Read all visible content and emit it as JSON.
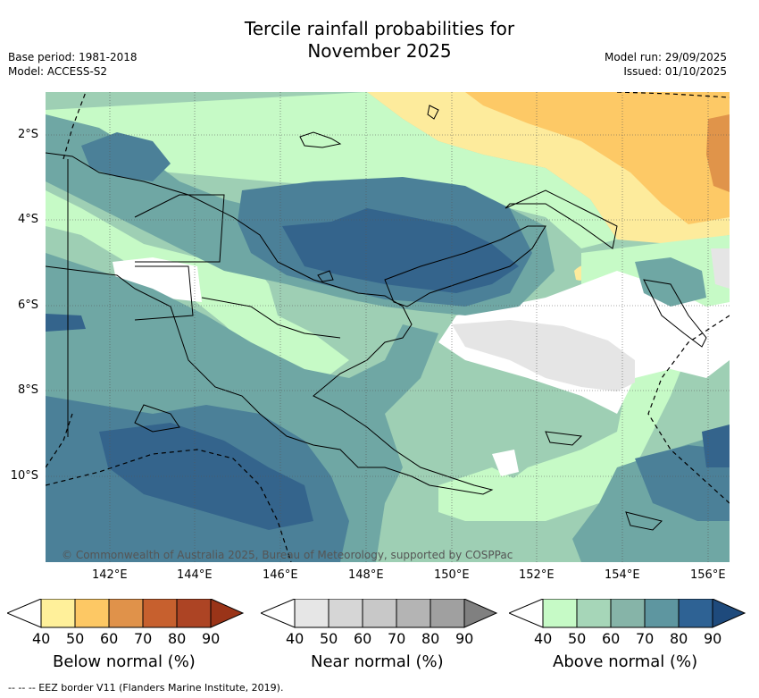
{
  "title_line1": "Tercile rainfall probabilities for",
  "title_line2": "November 2025",
  "base_period": "Base period: 1981-2018",
  "model": "Model: ACCESS-S2",
  "model_run": "Model run: 29/09/2025",
  "issued": "Issued: 01/10/2025",
  "copyright": "© Commonwealth of Australia 2025, Bureau of Meteorology, supported by COSPPac",
  "footer": "--  --  -- EEZ border V11 (Flanders Marine Institute, 2019).",
  "lat_labels": [
    "2°S",
    "4°S",
    "6°S",
    "8°S",
    "10°S"
  ],
  "lon_labels": [
    "142°E",
    "144°E",
    "146°E",
    "148°E",
    "150°E",
    "152°E",
    "154°E",
    "156°E"
  ],
  "colorbars": [
    {
      "label": "Below normal (%)",
      "ticks": [
        "40",
        "50",
        "60",
        "70",
        "80",
        "90"
      ],
      "colors": [
        "#fff09a",
        "#fdc864",
        "#e0924a",
        "#c7602e",
        "#ad4424",
        "#9a3418"
      ]
    },
    {
      "label": "Near normal (%)",
      "ticks": [
        "40",
        "50",
        "60",
        "70",
        "80",
        "90"
      ],
      "colors": [
        "#e6e6e6",
        "#d6d6d6",
        "#c8c8c8",
        "#b4b4b4",
        "#a0a0a0",
        "#808080"
      ]
    },
    {
      "label": "Above normal (%)",
      "ticks": [
        "40",
        "50",
        "60",
        "70",
        "80",
        "90"
      ],
      "colors": [
        "#c6fac6",
        "#a6d6b8",
        "#86b4a8",
        "#5e96a0",
        "#2e6294",
        "#1e4a7c"
      ]
    }
  ],
  "colors": {
    "above_40": "#c6fac6",
    "above_50": "#9ecfb4",
    "above_60": "#6fa7a4",
    "above_70": "#4b8098",
    "above_80": "#34648c",
    "below_40": "#fdeb9c",
    "below_50": "#fdc966",
    "below_60": "#e0944a",
    "near_40": "#e5e5e5"
  }
}
